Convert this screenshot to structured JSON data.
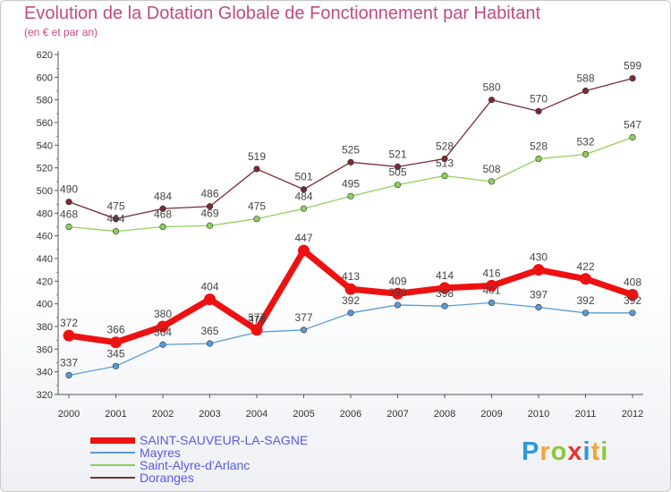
{
  "title": "Evolution de la Dotation Globale de Fonctionnement par Habitant",
  "subtitle": "(en € et par an)",
  "logo_text": "Proxiti",
  "chart_data": {
    "type": "line",
    "x": [
      "2000",
      "2001",
      "2002",
      "2003",
      "2004",
      "2005",
      "2006",
      "2007",
      "2008",
      "2009",
      "2010",
      "2011",
      "2012"
    ],
    "ylim": [
      320,
      620
    ],
    "ytick_step": 20,
    "grid": false,
    "legend_position": "bottom-left",
    "series": [
      {
        "name": "SAINT-SAUVEUR-LA-SAGNE",
        "color": "#ee1111",
        "values": [
          372,
          366,
          380,
          404,
          377,
          447,
          413,
          409,
          414,
          416,
          430,
          422,
          408
        ]
      },
      {
        "name": "Mayres",
        "color": "#5b9bd5",
        "values": [
          337,
          345,
          364,
          365,
          375,
          377,
          392,
          399,
          398,
          401,
          397,
          392,
          392
        ]
      },
      {
        "name": "Saint-Alyre-d'Arlanc",
        "color": "#8fd05a",
        "values": [
          468,
          464,
          468,
          469,
          475,
          484,
          495,
          505,
          513,
          508,
          528,
          532,
          547
        ]
      },
      {
        "name": "Doranges",
        "color": "#7a2a32",
        "values": [
          490,
          475,
          484,
          486,
          519,
          501,
          525,
          521,
          528,
          580,
          570,
          588,
          599
        ]
      }
    ]
  }
}
